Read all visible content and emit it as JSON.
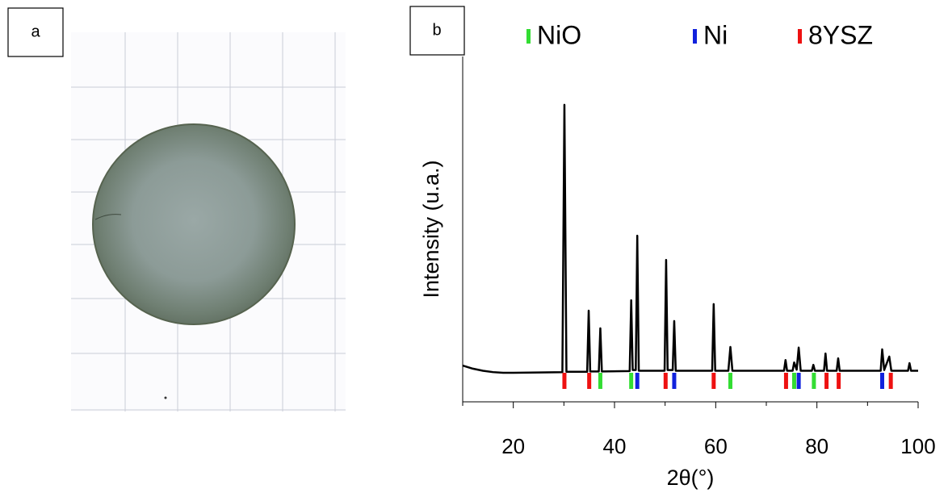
{
  "panel_labels": [
    "a",
    "b"
  ],
  "chart_data": {
    "type": "line",
    "xlabel": "2θ(°)",
    "ylabel": "Intensity (u.a.)",
    "xlim": [
      10,
      100
    ],
    "xticks": [
      20,
      40,
      60,
      80,
      100
    ],
    "xminorticks": [
      10,
      30,
      50,
      70,
      90
    ],
    "ylim": [
      0,
      100
    ],
    "grid": false,
    "x": [
      10,
      12,
      14,
      16,
      18,
      20,
      25,
      29.7,
      30.1,
      30.5,
      34.6,
      34.9,
      35.2,
      36.9,
      37.2,
      37.5,
      43.0,
      43.3,
      43.6,
      44.2,
      44.5,
      44.8,
      49.9,
      50.2,
      50.5,
      51.5,
      51.8,
      52.1,
      59.3,
      59.6,
      59.9,
      62.5,
      62.9,
      63.3,
      73.5,
      73.8,
      74.1,
      75.2,
      75.5,
      76.0,
      76.4,
      76.8,
      79.0,
      79.3,
      79.6,
      81.4,
      81.7,
      82.0,
      83.9,
      84.2,
      84.5,
      92.6,
      92.9,
      93.3,
      94.3,
      94.7,
      98.0,
      98.3,
      98.6,
      100
    ],
    "series": [
      {
        "color": "#000000",
        "values": [
          10.5,
          9.6,
          9.0,
          8.6,
          8.4,
          8.4,
          8.5,
          8.6,
          86,
          8.7,
          8.7,
          26.4,
          8.8,
          8.8,
          21.3,
          8.8,
          8.9,
          29.4,
          9.2,
          9.2,
          48.1,
          9.0,
          9.0,
          41.1,
          9.2,
          9.2,
          23.4,
          9.0,
          9.0,
          28.3,
          9.0,
          9.0,
          15.9,
          9.0,
          9.0,
          12.1,
          9.0,
          9.0,
          11.4,
          9.3,
          15.7,
          9.0,
          9.0,
          10.7,
          9.0,
          9.0,
          14.0,
          9.0,
          9.0,
          12.6,
          9.0,
          9.0,
          15.2,
          9.2,
          13.1,
          9.0,
          9.0,
          11.2,
          9.0,
          9.0
        ]
      }
    ],
    "reference_markers": [
      {
        "name": "NiO",
        "color": "#33dd33",
        "positions": [
          37.2,
          43.3,
          62.9,
          75.5,
          79.4
        ]
      },
      {
        "name": "Ni",
        "color": "#1122dd",
        "positions": [
          44.5,
          51.8,
          76.4,
          92.9
        ]
      },
      {
        "name": "8YSZ",
        "color": "#ee1111",
        "positions": [
          30.1,
          35.0,
          50.1,
          59.6,
          73.9,
          81.9,
          84.3,
          94.6
        ]
      }
    ]
  }
}
